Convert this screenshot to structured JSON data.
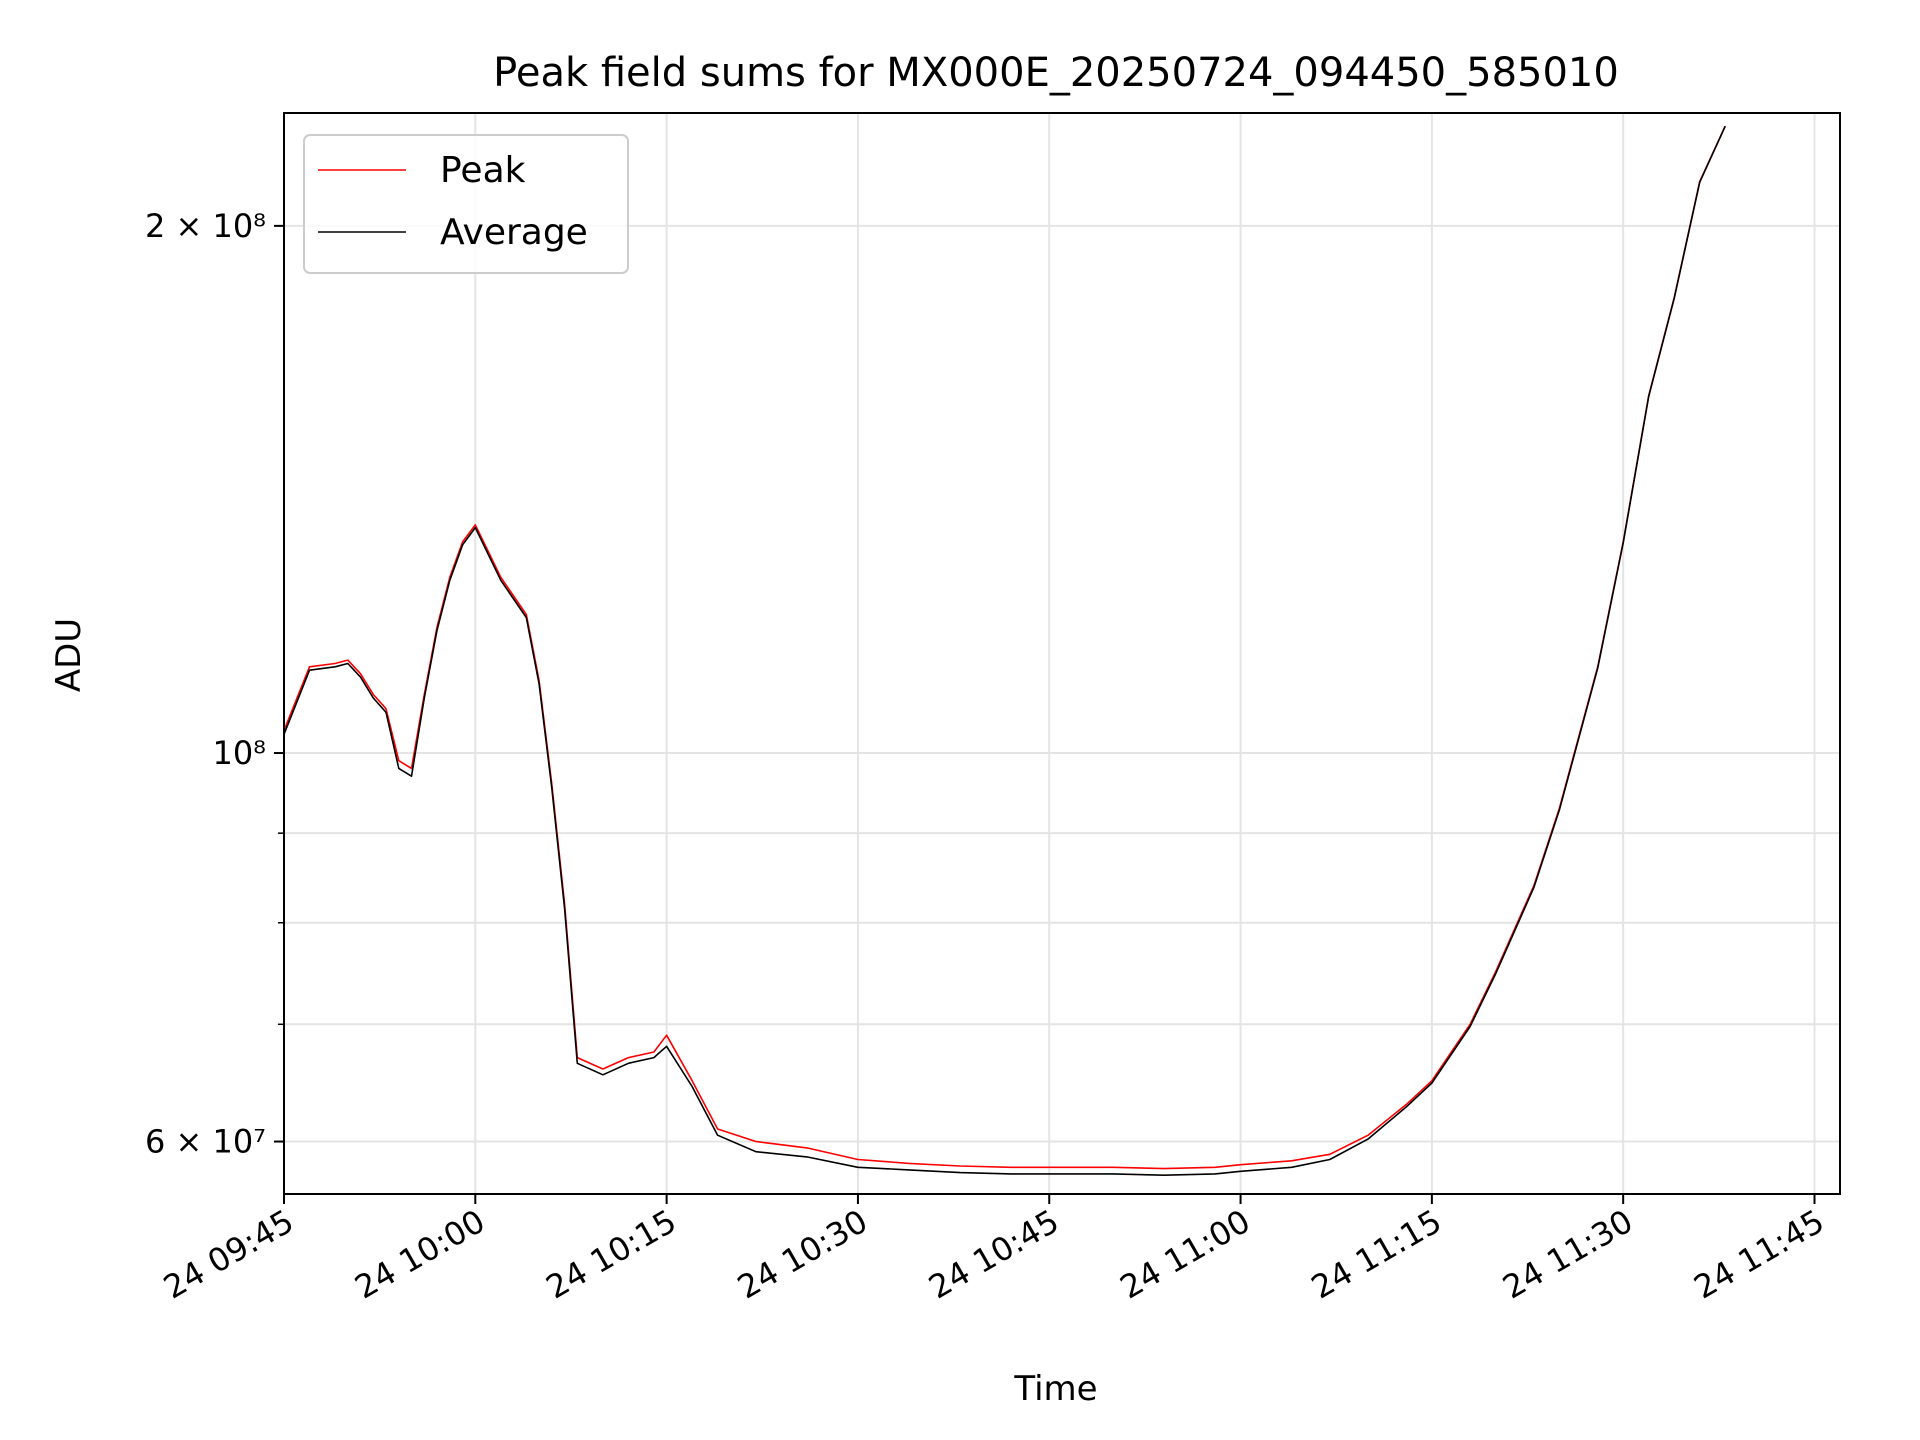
{
  "chart_data": {
    "type": "line",
    "title": "Peak field sums for MX000E_20250724_094450_585010",
    "xlabel": "Time",
    "ylabel": "ADU",
    "x_range": [
      "2025-07-24 09:45",
      "2025-07-24 11:47"
    ],
    "ylim": [
      56000000,
      232000000
    ],
    "yscale": "log",
    "grid": true,
    "legend_position": "top-left",
    "x_ticks": [
      {
        "t": "2025-07-24 09:45",
        "label": "24 09:45"
      },
      {
        "t": "2025-07-24 10:00",
        "label": "24 10:00"
      },
      {
        "t": "2025-07-24 10:15",
        "label": "24 10:15"
      },
      {
        "t": "2025-07-24 10:30",
        "label": "24 10:30"
      },
      {
        "t": "2025-07-24 10:45",
        "label": "24 10:45"
      },
      {
        "t": "2025-07-24 11:00",
        "label": "24 11:00"
      },
      {
        "t": "2025-07-24 11:15",
        "label": "24 11:15"
      },
      {
        "t": "2025-07-24 11:30",
        "label": "24 11:30"
      },
      {
        "t": "2025-07-24 11:45",
        "label": "24 11:45"
      }
    ],
    "y_major_ticks": [
      {
        "value": 60000000,
        "label": "6 × 10⁷"
      },
      {
        "value": 100000000,
        "label": "10⁸"
      },
      {
        "value": 200000000,
        "label": "2 × 10⁸"
      }
    ],
    "y_minor_ticks": [
      70000000,
      80000000,
      90000000
    ],
    "x": [
      "2025-07-24 09:45",
      "2025-07-24 09:47",
      "2025-07-24 09:49",
      "2025-07-24 09:50",
      "2025-07-24 09:51",
      "2025-07-24 09:52",
      "2025-07-24 09:53",
      "2025-07-24 09:54",
      "2025-07-24 09:55",
      "2025-07-24 09:56",
      "2025-07-24 09:57",
      "2025-07-24 09:58",
      "2025-07-24 09:59",
      "2025-07-24 10:00",
      "2025-07-24 10:02",
      "2025-07-24 10:04",
      "2025-07-24 10:05",
      "2025-07-24 10:06",
      "2025-07-24 10:07",
      "2025-07-24 10:08",
      "2025-07-24 10:10",
      "2025-07-24 10:12",
      "2025-07-24 10:14",
      "2025-07-24 10:15",
      "2025-07-24 10:17",
      "2025-07-24 10:19",
      "2025-07-24 10:22",
      "2025-07-24 10:26",
      "2025-07-24 10:30",
      "2025-07-24 10:34",
      "2025-07-24 10:38",
      "2025-07-24 10:42",
      "2025-07-24 10:46",
      "2025-07-24 10:50",
      "2025-07-24 10:54",
      "2025-07-24 10:58",
      "2025-07-24 11:00",
      "2025-07-24 11:04",
      "2025-07-24 11:07",
      "2025-07-24 11:10",
      "2025-07-24 11:13",
      "2025-07-24 11:15",
      "2025-07-24 11:18",
      "2025-07-24 11:20",
      "2025-07-24 11:23",
      "2025-07-24 11:25",
      "2025-07-24 11:28",
      "2025-07-24 11:30",
      "2025-07-24 11:32",
      "2025-07-24 11:34",
      "2025-07-24 11:36",
      "2025-07-24 11:38"
    ],
    "series": [
      {
        "name": "Peak",
        "color": "#ff0000",
        "values": [
          103000000,
          112000000,
          112500000,
          113000000,
          111000000,
          108000000,
          106000000,
          99000000,
          98000000,
          108000000,
          118000000,
          126000000,
          132000000,
          135000000,
          126000000,
          120000000,
          110000000,
          96000000,
          82000000,
          67000000,
          66000000,
          67000000,
          67500000,
          69000000,
          65000000,
          61000000,
          60000000,
          59500000,
          58600000,
          58300000,
          58100000,
          58000000,
          58000000,
          58000000,
          57900000,
          58000000,
          58200000,
          58500000,
          59000000,
          60500000,
          63000000,
          65000000,
          70000000,
          75000000,
          84000000,
          93000000,
          112000000,
          132000000,
          160000000,
          182000000,
          212000000,
          228000000
        ]
      },
      {
        "name": "Average",
        "color": "#000000",
        "values": [
          102500000,
          111500000,
          112000000,
          112500000,
          110500000,
          107500000,
          105500000,
          98000000,
          97000000,
          107500000,
          117500000,
          125500000,
          131500000,
          134500000,
          125500000,
          119500000,
          109500000,
          95500000,
          81500000,
          66500000,
          65500000,
          66500000,
          67000000,
          68000000,
          64500000,
          60500000,
          59200000,
          58800000,
          58000000,
          57800000,
          57600000,
          57500000,
          57500000,
          57500000,
          57400000,
          57500000,
          57700000,
          58000000,
          58600000,
          60200000,
          62800000,
          64800000,
          69800000,
          74800000,
          83800000,
          92800000,
          111800000,
          131800000,
          159800000,
          181800000,
          211800000,
          228000000
        ]
      }
    ]
  }
}
